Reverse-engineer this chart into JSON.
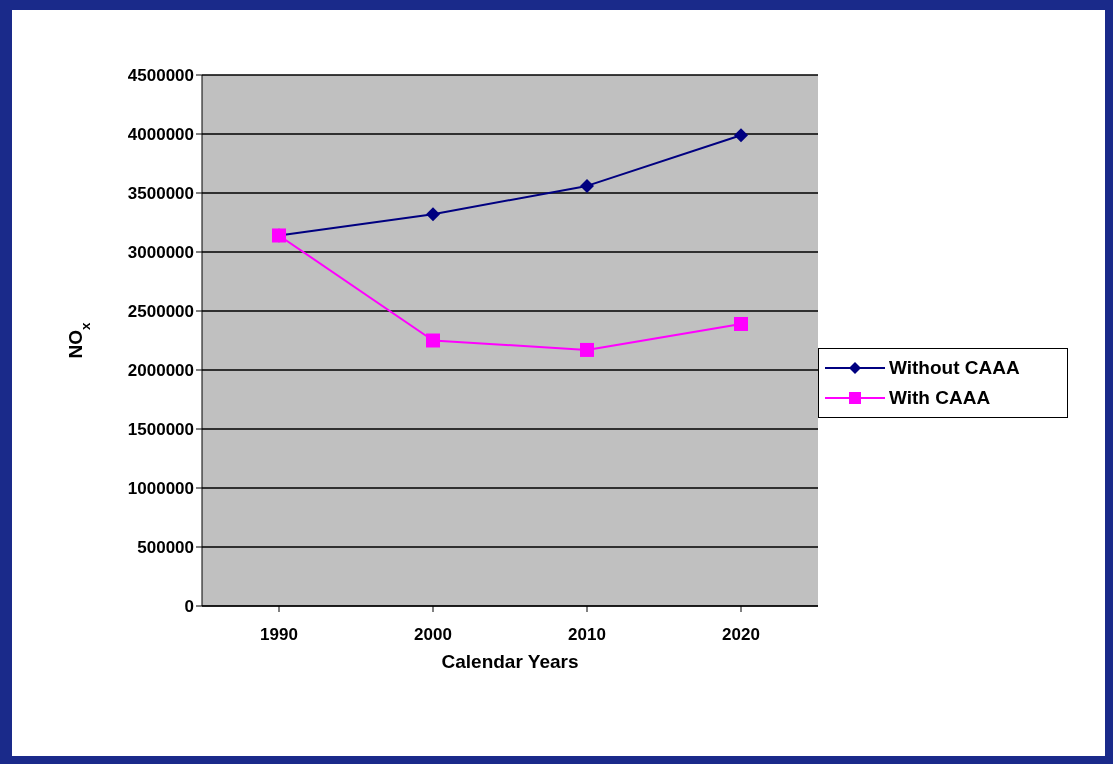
{
  "chart_data": {
    "type": "line",
    "xlabel": "Calendar Years",
    "ylabel": "NO$_{x}$",
    "categories": [
      "1990",
      "2000",
      "2010",
      "2020"
    ],
    "series": [
      {
        "name": "Without CAAA",
        "color": "#000080",
        "marker": "diamond",
        "values": [
          3140000,
          3320000,
          3560000,
          3990000
        ]
      },
      {
        "name": "With CAAA",
        "color": "#ff00ff",
        "marker": "square",
        "values": [
          3140000,
          2250000,
          2170000,
          2390000
        ]
      }
    ],
    "ylim": [
      0,
      4500000
    ],
    "yticks": [
      0,
      500000,
      1000000,
      1500000,
      2000000,
      2500000,
      3000000,
      3500000,
      4000000,
      4500000
    ],
    "grid": "y",
    "legend": "right"
  }
}
